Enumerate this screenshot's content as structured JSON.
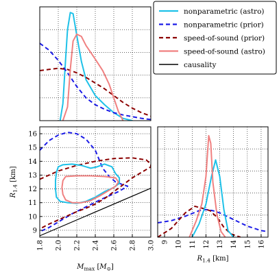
{
  "chart_data": {
    "type": "line",
    "legend": {
      "placement": "top-right",
      "entries": [
        {
          "label": "nonparametric (astro)",
          "color": "#1ec1e8",
          "dash": "solid"
        },
        {
          "label": "nonparametric (prior)",
          "color": "#1a1ae6",
          "dash": "dashed"
        },
        {
          "label": "speed-of-sound (prior)",
          "color": "#8b0000",
          "dash": "dashed"
        },
        {
          "label": "speed-of-sound (astro)",
          "color": "#f08080",
          "dash": "solid"
        },
        {
          "label": "causality",
          "color": "#000000",
          "dash": "solid"
        }
      ]
    },
    "panels": {
      "mmax_marginal": {
        "xlim": [
          1.8,
          3.0
        ],
        "ylim": [
          0,
          1
        ],
        "grid": true,
        "series": [
          {
            "name": "nonparametric (astro)",
            "color": "#1ec1e8",
            "dash": "solid",
            "points": [
              [
                2.02,
                0.0
              ],
              [
                2.05,
                0.15
              ],
              [
                2.08,
                0.55
              ],
              [
                2.1,
                0.8
              ],
              [
                2.13,
                0.95
              ],
              [
                2.16,
                0.94
              ],
              [
                2.2,
                0.75
              ],
              [
                2.25,
                0.52
              ],
              [
                2.3,
                0.36
              ],
              [
                2.4,
                0.22
              ],
              [
                2.5,
                0.14
              ],
              [
                2.6,
                0.07
              ],
              [
                2.7,
                0.02
              ],
              [
                2.8,
                0.0
              ]
            ]
          },
          {
            "name": "nonparametric (prior)",
            "color": "#1a1ae6",
            "dash": "dashed",
            "points": [
              [
                1.8,
                0.68
              ],
              [
                1.9,
                0.62
              ],
              [
                2.0,
                0.53
              ],
              [
                2.1,
                0.42
              ],
              [
                2.2,
                0.3
              ],
              [
                2.3,
                0.2
              ],
              [
                2.4,
                0.14
              ],
              [
                2.5,
                0.1
              ],
              [
                2.6,
                0.07
              ],
              [
                2.7,
                0.05
              ],
              [
                2.8,
                0.035
              ],
              [
                2.9,
                0.02
              ],
              [
                3.0,
                0.01
              ]
            ]
          },
          {
            "name": "speed-of-sound (prior)",
            "color": "#8b0000",
            "dash": "dashed",
            "points": [
              [
                1.8,
                0.44
              ],
              [
                1.9,
                0.45
              ],
              [
                2.0,
                0.46
              ],
              [
                2.1,
                0.45
              ],
              [
                2.2,
                0.42
              ],
              [
                2.3,
                0.38
              ],
              [
                2.4,
                0.33
              ],
              [
                2.5,
                0.28
              ],
              [
                2.6,
                0.22
              ],
              [
                2.7,
                0.16
              ],
              [
                2.8,
                0.11
              ],
              [
                2.9,
                0.07
              ],
              [
                3.0,
                0.04
              ]
            ]
          },
          {
            "name": "speed-of-sound (astro)",
            "color": "#f08080",
            "dash": "solid",
            "points": [
              [
                2.05,
                0.0
              ],
              [
                2.1,
                0.12
              ],
              [
                2.13,
                0.45
              ],
              [
                2.16,
                0.7
              ],
              [
                2.2,
                0.76
              ],
              [
                2.25,
                0.74
              ],
              [
                2.3,
                0.66
              ],
              [
                2.4,
                0.54
              ],
              [
                2.48,
                0.44
              ],
              [
                2.55,
                0.32
              ],
              [
                2.6,
                0.2
              ],
              [
                2.65,
                0.08
              ],
              [
                2.7,
                0.0
              ]
            ]
          }
        ]
      },
      "joint": {
        "xlim": [
          1.8,
          3.0
        ],
        "ylim": [
          8.5,
          16.5
        ],
        "xticks": [
          1.8,
          2.0,
          2.2,
          2.4,
          2.6,
          2.8,
          3.0
        ],
        "yticks": [
          9,
          10,
          11,
          12,
          13,
          14,
          15,
          16
        ],
        "xlabel": "M_max [M_⊙]",
        "ylabel": "R_1.4 [km]",
        "grid": true,
        "contours": [
          {
            "name": "nonparametric (prior)",
            "color": "#1a1ae6",
            "dash": "dashed",
            "points": [
              [
                1.8,
                14.8
              ],
              [
                1.9,
                15.5
              ],
              [
                2.0,
                15.9
              ],
              [
                2.1,
                16.1
              ],
              [
                2.2,
                16.0
              ],
              [
                2.3,
                15.6
              ],
              [
                2.4,
                14.8
              ],
              [
                2.48,
                13.5
              ],
              [
                2.55,
                12.9
              ],
              [
                2.62,
                12.5
              ],
              [
                2.7,
                12.3
              ],
              [
                2.75,
                12.2
              ],
              [
                2.65,
                11.8
              ],
              [
                2.55,
                11.5
              ],
              [
                2.45,
                11.2
              ],
              [
                2.3,
                10.7
              ],
              [
                2.15,
                10.2
              ],
              [
                2.0,
                9.6
              ],
              [
                1.9,
                9.2
              ],
              [
                1.8,
                8.9
              ]
            ],
            "closed": false
          },
          {
            "name": "speed-of-sound (prior)",
            "color": "#8b0000",
            "dash": "dashed",
            "points": [
              [
                1.8,
                12.7
              ],
              [
                1.9,
                13.0
              ],
              [
                2.0,
                13.3
              ],
              [
                2.2,
                13.7
              ],
              [
                2.4,
                14.0
              ],
              [
                2.6,
                14.2
              ],
              [
                2.8,
                14.25
              ],
              [
                2.95,
                14.1
              ],
              [
                3.0,
                13.8
              ],
              [
                3.0,
                13.6
              ],
              [
                2.9,
                13.2
              ],
              [
                2.8,
                12.8
              ],
              [
                2.7,
                12.3
              ],
              [
                2.6,
                11.8
              ],
              [
                2.5,
                11.3
              ],
              [
                2.4,
                10.9
              ],
              [
                2.3,
                10.6
              ],
              [
                2.2,
                10.35
              ],
              [
                2.1,
                10.05
              ],
              [
                2.0,
                9.75
              ],
              [
                1.9,
                9.45
              ],
              [
                1.8,
                9.1
              ]
            ],
            "closed": false
          },
          {
            "name": "nonparametric (astro)",
            "color": "#1ec1e8",
            "dash": "solid",
            "points": [
              [
                2.0,
                13.6
              ],
              [
                2.05,
                13.75
              ],
              [
                2.15,
                13.8
              ],
              [
                2.25,
                13.7
              ],
              [
                2.35,
                13.5
              ],
              [
                2.42,
                13.6
              ],
              [
                2.5,
                13.8
              ],
              [
                2.58,
                13.6
              ],
              [
                2.62,
                13.1
              ],
              [
                2.66,
                12.8
              ],
              [
                2.66,
                12.4
              ],
              [
                2.6,
                12.1
              ],
              [
                2.5,
                11.8
              ],
              [
                2.4,
                11.4
              ],
              [
                2.3,
                11.1
              ],
              [
                2.2,
                10.95
              ],
              [
                2.1,
                11.0
              ],
              [
                2.02,
                11.1
              ],
              [
                1.98,
                11.4
              ],
              [
                1.97,
                12.0
              ],
              [
                1.97,
                12.6
              ],
              [
                1.98,
                13.2
              ]
            ],
            "closed": true
          },
          {
            "name": "speed-of-sound (astro)",
            "color": "#f08080",
            "dash": "solid",
            "points": [
              [
                2.08,
                12.9
              ],
              [
                2.2,
                12.95
              ],
              [
                2.35,
                12.95
              ],
              [
                2.5,
                12.9
              ],
              [
                2.62,
                12.8
              ],
              [
                2.65,
                12.5
              ],
              [
                2.62,
                12.2
              ],
              [
                2.55,
                11.9
              ],
              [
                2.45,
                11.5
              ],
              [
                2.35,
                11.15
              ],
              [
                2.25,
                11.0
              ],
              [
                2.15,
                11.0
              ],
              [
                2.08,
                11.2
              ],
              [
                2.05,
                11.6
              ],
              [
                2.04,
                12.1
              ],
              [
                2.05,
                12.6
              ]
            ],
            "closed": true
          },
          {
            "name": "causality",
            "color": "#000000",
            "dash": "solid",
            "points": [
              [
                1.8,
                8.6
              ],
              [
                3.0,
                12.05
              ]
            ],
            "closed": false
          }
        ]
      },
      "r14_marginal": {
        "xlim": [
          8.5,
          16.5
        ],
        "ylim": [
          0,
          1
        ],
        "xticks": [
          9,
          10,
          11,
          12,
          13,
          14,
          15,
          16
        ],
        "xlabel": "R_1.4 [km]",
        "grid": true,
        "series": [
          {
            "name": "nonparametric (prior)",
            "color": "#1a1ae6",
            "dash": "dashed",
            "points": [
              [
                8.5,
                0.13
              ],
              [
                9.5,
                0.15
              ],
              [
                10.5,
                0.19
              ],
              [
                11.5,
                0.24
              ],
              [
                12.0,
                0.25
              ],
              [
                12.5,
                0.24
              ],
              [
                13.0,
                0.22
              ],
              [
                13.5,
                0.19
              ],
              [
                14.0,
                0.16
              ],
              [
                14.5,
                0.13
              ],
              [
                15.0,
                0.1
              ],
              [
                15.5,
                0.08
              ],
              [
                16.0,
                0.06
              ],
              [
                16.5,
                0.05
              ]
            ]
          },
          {
            "name": "speed-of-sound (prior)",
            "color": "#8b0000",
            "dash": "dashed",
            "points": [
              [
                8.5,
                0.0
              ],
              [
                9.5,
                0.08
              ],
              [
                10.5,
                0.22
              ],
              [
                11.2,
                0.28
              ],
              [
                11.8,
                0.26
              ],
              [
                12.3,
                0.24
              ],
              [
                12.8,
                0.18
              ],
              [
                13.3,
                0.09
              ],
              [
                13.8,
                0.03
              ],
              [
                14.5,
                0.0
              ]
            ]
          },
          {
            "name": "nonparametric (astro)",
            "color": "#1ec1e8",
            "dash": "solid",
            "points": [
              [
                11.0,
                0.0
              ],
              [
                11.5,
                0.12
              ],
              [
                12.0,
                0.3
              ],
              [
                12.4,
                0.55
              ],
              [
                12.7,
                0.7
              ],
              [
                13.0,
                0.55
              ],
              [
                13.3,
                0.25
              ],
              [
                13.6,
                0.06
              ],
              [
                14.0,
                0.0
              ]
            ]
          },
          {
            "name": "speed-of-sound (astro)",
            "color": "#f08080",
            "dash": "solid",
            "points": [
              [
                10.8,
                0.0
              ],
              [
                11.3,
                0.15
              ],
              [
                11.7,
                0.3
              ],
              [
                12.0,
                0.55
              ],
              [
                12.2,
                0.92
              ],
              [
                12.35,
                0.85
              ],
              [
                12.5,
                0.5
              ],
              [
                12.8,
                0.2
              ],
              [
                13.1,
                0.05
              ],
              [
                13.4,
                0.0
              ]
            ]
          }
        ]
      }
    }
  }
}
